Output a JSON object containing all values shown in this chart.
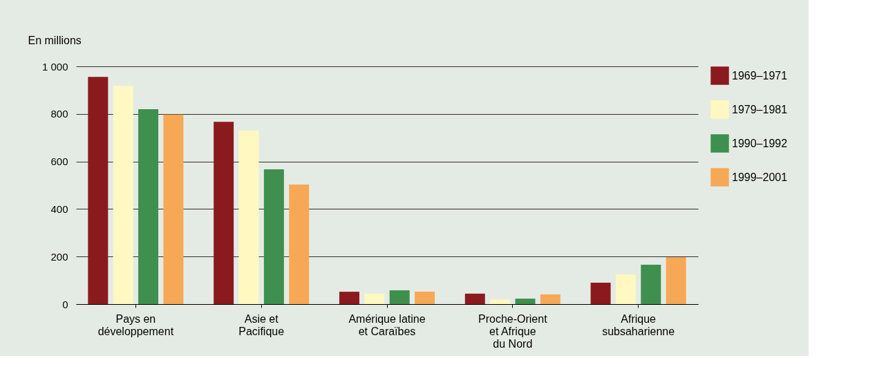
{
  "chart_data": {
    "type": "bar",
    "ylabel": "En millions",
    "categories": [
      "Pays en\ndéveloppement",
      "Asie et\nPacifique",
      "Amérique latine\net Caraïbes",
      "Proche-Orient\net Afrique\ndu Nord",
      "Afrique\nsubsaharienne"
    ],
    "series": [
      {
        "name": "1969–1971",
        "color": "#8b1a1e",
        "values": [
          956,
          767,
          52,
          44,
          90
        ]
      },
      {
        "name": "1979–1981",
        "color": "#fff8c0",
        "values": [
          918,
          730,
          44,
          20,
          125
        ]
      },
      {
        "name": "1990–1992",
        "color": "#3f8f4f",
        "values": [
          820,
          567,
          58,
          23,
          166
        ]
      },
      {
        "name": "1999–2001",
        "color": "#f7a856",
        "values": [
          797,
          503,
          52,
          41,
          198
        ]
      }
    ],
    "ylim": [
      0,
      1000
    ],
    "yticks": [
      0,
      200,
      400,
      600,
      800,
      {
        "value": 1000,
        "label": "1 000"
      }
    ],
    "grid": "y",
    "legend": "right"
  }
}
